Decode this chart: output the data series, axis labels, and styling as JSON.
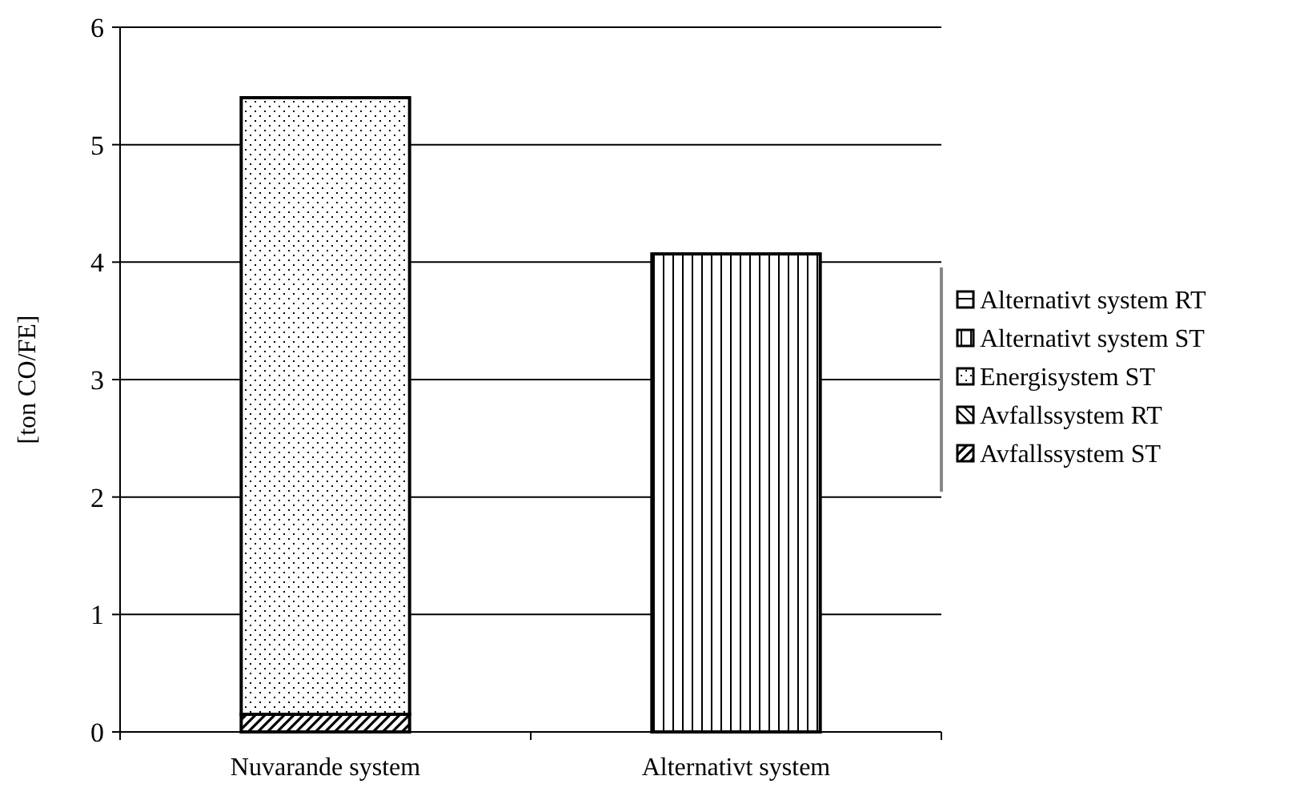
{
  "chart_data": {
    "type": "bar",
    "stacked": true,
    "ylabel": "[ton  CO/FE]",
    "categories": [
      "Nuvarande system",
      "Alternativt system"
    ],
    "series": [
      {
        "name": "Avfallssystem ST",
        "color": "#000000",
        "values": [
          0.15,
          0
        ]
      },
      {
        "name": "Avfallssystem RT",
        "color": "#000000",
        "values": [
          0,
          0
        ]
      },
      {
        "name": "Energisystem ST",
        "color": "#000000",
        "values": [
          5.25,
          0
        ]
      },
      {
        "name": "Alternativt system ST",
        "color": "#000000",
        "values": [
          0,
          4.07
        ]
      },
      {
        "name": "Alternativt system RT",
        "color": "#000000",
        "values": [
          0,
          0
        ]
      }
    ],
    "ylim": [
      0,
      6
    ],
    "yticks": [
      0,
      1,
      2,
      3,
      4,
      5,
      6
    ],
    "grid": "y",
    "legend": "right"
  }
}
